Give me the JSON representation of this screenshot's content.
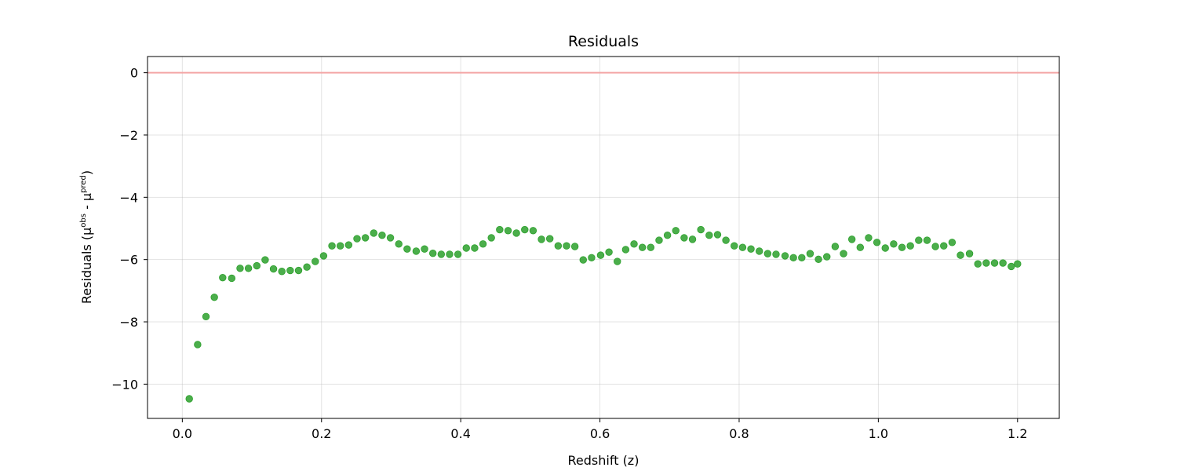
{
  "chart_data": {
    "type": "scatter",
    "title": "Residuals",
    "xlabel": "Redshift (z)",
    "ylabel": {
      "prefix": "Residuals (μ",
      "obs_sup": "obs",
      "middle": " - μ",
      "pred_sup": "pred",
      "suffix": ")"
    },
    "xlim": [
      -0.05,
      1.26
    ],
    "ylim": [
      -11.1,
      0.52
    ],
    "xticks": [
      0.0,
      0.2,
      0.4,
      0.6,
      0.8,
      1.0,
      1.2
    ],
    "xtick_labels": [
      "0.0",
      "0.2",
      "0.4",
      "0.6",
      "0.8",
      "1.0",
      "1.2"
    ],
    "yticks": [
      0,
      -2,
      -4,
      -6,
      -8,
      -10
    ],
    "ytick_labels": [
      "0",
      "−2",
      "−4",
      "−6",
      "−8",
      "−10"
    ],
    "grid": true,
    "reference_line": {
      "y": 0,
      "color": "#f4a6a6"
    },
    "series": [
      {
        "color": "#2ca02c",
        "x": [
          0.01,
          0.022,
          0.034,
          0.046,
          0.058,
          0.071,
          0.083,
          0.095,
          0.107,
          0.119,
          0.131,
          0.143,
          0.155,
          0.167,
          0.179,
          0.191,
          0.203,
          0.215,
          0.227,
          0.239,
          0.251,
          0.263,
          0.275,
          0.287,
          0.299,
          0.311,
          0.323,
          0.336,
          0.348,
          0.36,
          0.372,
          0.384,
          0.396,
          0.408,
          0.42,
          0.432,
          0.444,
          0.456,
          0.468,
          0.48,
          0.492,
          0.504,
          0.516,
          0.528,
          0.54,
          0.552,
          0.564,
          0.576,
          0.588,
          0.601,
          0.613,
          0.625,
          0.637,
          0.649,
          0.661,
          0.673,
          0.685,
          0.697,
          0.709,
          0.721,
          0.733,
          0.745,
          0.757,
          0.769,
          0.781,
          0.793,
          0.805,
          0.817,
          0.829,
          0.841,
          0.853,
          0.866,
          0.878,
          0.89,
          0.902,
          0.914,
          0.926,
          0.938,
          0.95,
          0.962,
          0.974,
          0.986,
          0.998,
          1.01,
          1.022,
          1.034,
          1.046,
          1.058,
          1.07,
          1.082,
          1.094,
          1.106,
          1.118,
          1.131,
          1.143,
          1.155,
          1.167,
          1.179,
          1.191,
          1.2
        ],
        "y": [
          -10.47,
          -8.73,
          -7.83,
          -7.21,
          -6.58,
          -6.6,
          -6.28,
          -6.28,
          -6.2,
          -6.01,
          -6.3,
          -6.38,
          -6.35,
          -6.35,
          -6.24,
          -6.06,
          -5.88,
          -5.56,
          -5.56,
          -5.53,
          -5.33,
          -5.3,
          -5.15,
          -5.22,
          -5.3,
          -5.5,
          -5.66,
          -5.73,
          -5.66,
          -5.8,
          -5.83,
          -5.83,
          -5.83,
          -5.63,
          -5.63,
          -5.5,
          -5.3,
          -5.04,
          -5.07,
          -5.15,
          -5.04,
          -5.07,
          -5.35,
          -5.33,
          -5.56,
          -5.56,
          -5.58,
          -6.01,
          -5.94,
          -5.86,
          -5.76,
          -6.06,
          -5.68,
          -5.5,
          -5.61,
          -5.61,
          -5.38,
          -5.22,
          -5.07,
          -5.3,
          -5.35,
          -5.04,
          -5.22,
          -5.2,
          -5.38,
          -5.56,
          -5.61,
          -5.66,
          -5.73,
          -5.81,
          -5.83,
          -5.88,
          -5.94,
          -5.94,
          -5.81,
          -5.99,
          -5.91,
          -5.58,
          -5.81,
          -5.35,
          -5.61,
          -5.3,
          -5.45,
          -5.63,
          -5.5,
          -5.61,
          -5.56,
          -5.38,
          -5.38,
          -5.58,
          -5.56,
          -5.45,
          -5.86,
          -5.81,
          -6.14,
          -6.11,
          -6.11,
          -6.11,
          -6.22,
          -6.14
        ]
      }
    ]
  }
}
